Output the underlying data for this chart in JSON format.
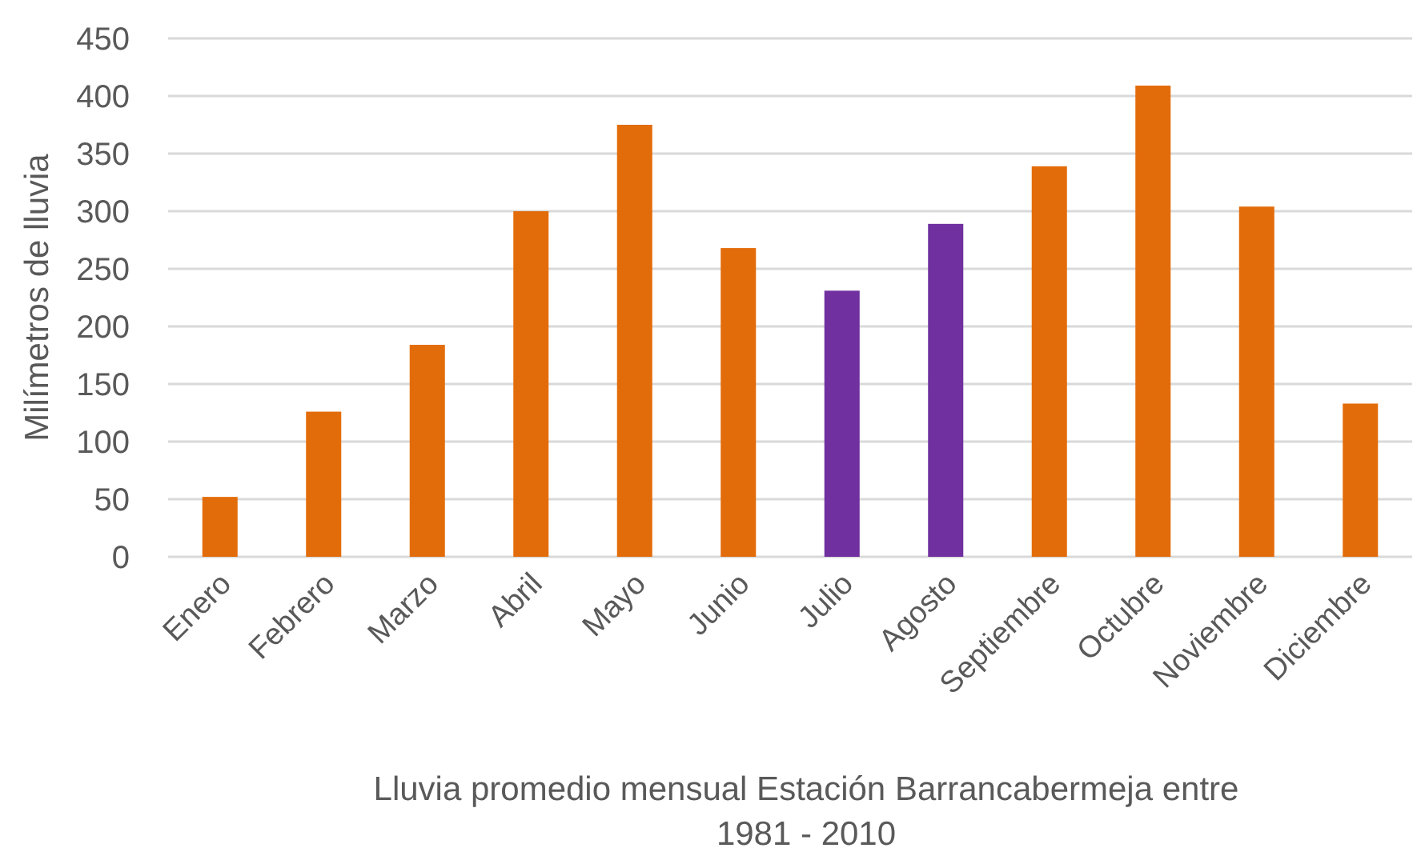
{
  "chart_data": {
    "type": "bar",
    "xlabel": "Lluvia promedio mensual Estación Barrancabermeja entre 1981 - 2010",
    "ylabel": "Milímetros de lluvia",
    "categories": [
      "Enero",
      "Febrero",
      "Marzo",
      "Abril",
      "Mayo",
      "Junio",
      "Julio",
      "Agosto",
      "Septiembre",
      "Octubre",
      "Noviembre",
      "Diciembre"
    ],
    "values": [
      52,
      126,
      184,
      300,
      375,
      268,
      231,
      289,
      339,
      409,
      304,
      133
    ],
    "colors": [
      "#e36c0a",
      "#e36c0a",
      "#e36c0a",
      "#e36c0a",
      "#e36c0a",
      "#e36c0a",
      "#7030a0",
      "#7030a0",
      "#e36c0a",
      "#e36c0a",
      "#e36c0a",
      "#e36c0a"
    ],
    "ylim": [
      0,
      450
    ],
    "yticks": [
      0,
      50,
      100,
      150,
      200,
      250,
      300,
      350,
      400,
      450
    ],
    "grid": "y"
  }
}
